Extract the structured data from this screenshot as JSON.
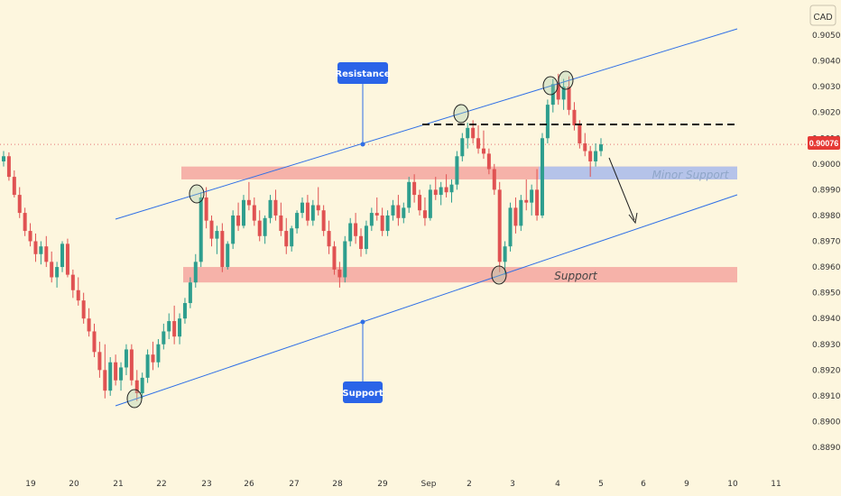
{
  "chart_data": {
    "type": "candlestick",
    "currency": "CAD",
    "last_price": "0.90076",
    "y_ticks": [
      "0.90500",
      "0.90400",
      "0.90300",
      "0.90200",
      "0.90100",
      "0.90000",
      "0.89900",
      "0.89800",
      "0.89700",
      "0.89600",
      "0.89500",
      "0.89400",
      "0.89300",
      "0.89200",
      "0.89100",
      "0.89000",
      "0.88900"
    ],
    "x_ticks": [
      "19",
      "20",
      "21",
      "22",
      "23",
      "26",
      "27",
      "28",
      "29",
      "Sep",
      "2",
      "3",
      "4",
      "5",
      "6",
      "9",
      "10",
      "11"
    ],
    "annotations": {
      "resistance": "Resistance",
      "support_callout": "Support",
      "minor_support": "Minor Support",
      "support_zone": "Support"
    },
    "colors": {
      "up": "#2e9e8e",
      "down": "#e05252",
      "channel": "#2f6fe6",
      "zone": "#f4a6a0",
      "minor_zone": "#aec4f0",
      "price_tag": "#e53935",
      "callout": "#2a64e8"
    },
    "candles": [
      [
        0.9001,
        0.9005,
        0.8999,
        0.9003
      ],
      [
        0.9003,
        0.90045,
        0.89935,
        0.8995
      ],
      [
        0.8995,
        0.89975,
        0.8987,
        0.8988
      ],
      [
        0.8988,
        0.8991,
        0.8979,
        0.8981
      ],
      [
        0.8981,
        0.8983,
        0.8972,
        0.8974
      ],
      [
        0.8974,
        0.8977,
        0.8968,
        0.897
      ],
      [
        0.897,
        0.8973,
        0.8962,
        0.8965
      ],
      [
        0.8965,
        0.897,
        0.8961,
        0.8968
      ],
      [
        0.8968,
        0.8972,
        0.896,
        0.8962
      ],
      [
        0.8962,
        0.8966,
        0.8954,
        0.8956
      ],
      [
        0.8956,
        0.8962,
        0.8952,
        0.896
      ],
      [
        0.896,
        0.897,
        0.8958,
        0.8969
      ],
      [
        0.8969,
        0.8971,
        0.8956,
        0.8957
      ],
      [
        0.8957,
        0.8959,
        0.8948,
        0.8951
      ],
      [
        0.8951,
        0.8956,
        0.8945,
        0.8947
      ],
      [
        0.8947,
        0.895,
        0.8938,
        0.894
      ],
      [
        0.894,
        0.8944,
        0.8933,
        0.8935
      ],
      [
        0.8935,
        0.8938,
        0.8925,
        0.8927
      ],
      [
        0.8927,
        0.8931,
        0.8917,
        0.892
      ],
      [
        0.892,
        0.893,
        0.8909,
        0.8912
      ],
      [
        0.8912,
        0.8925,
        0.891,
        0.8923
      ],
      [
        0.8923,
        0.8926,
        0.8914,
        0.8916
      ],
      [
        0.8916,
        0.8923,
        0.8912,
        0.8921
      ],
      [
        0.8921,
        0.893,
        0.8918,
        0.8928
      ],
      [
        0.8928,
        0.893,
        0.8914,
        0.8916
      ],
      [
        0.8916,
        0.892,
        0.8908,
        0.8911
      ],
      [
        0.8911,
        0.8919,
        0.8909,
        0.8917
      ],
      [
        0.8917,
        0.8928,
        0.8915,
        0.8926
      ],
      [
        0.8926,
        0.8931,
        0.892,
        0.8923
      ],
      [
        0.8923,
        0.8932,
        0.8921,
        0.893
      ],
      [
        0.893,
        0.8938,
        0.8928,
        0.8935
      ],
      [
        0.8935,
        0.8942,
        0.8932,
        0.8939
      ],
      [
        0.8939,
        0.8945,
        0.893,
        0.8933
      ],
      [
        0.8933,
        0.8942,
        0.893,
        0.894
      ],
      [
        0.894,
        0.8948,
        0.8938,
        0.8946
      ],
      [
        0.8946,
        0.8956,
        0.8944,
        0.8954
      ],
      [
        0.8954,
        0.8965,
        0.8952,
        0.8962
      ],
      [
        0.8962,
        0.8989,
        0.896,
        0.8987
      ],
      [
        0.8987,
        0.8991,
        0.8975,
        0.8978
      ],
      [
        0.8978,
        0.898,
        0.8968,
        0.8971
      ],
      [
        0.8971,
        0.8976,
        0.8965,
        0.8974
      ],
      [
        0.8974,
        0.8977,
        0.8958,
        0.896
      ],
      [
        0.896,
        0.897,
        0.8959,
        0.8969
      ],
      [
        0.8969,
        0.8982,
        0.8967,
        0.898
      ],
      [
        0.898,
        0.8985,
        0.8974,
        0.8976
      ],
      [
        0.8976,
        0.8988,
        0.8975,
        0.8986
      ],
      [
        0.8986,
        0.8993,
        0.8982,
        0.8984
      ],
      [
        0.8984,
        0.8987,
        0.8976,
        0.8978
      ],
      [
        0.8978,
        0.8982,
        0.897,
        0.8972
      ],
      [
        0.8972,
        0.898,
        0.8969,
        0.8979
      ],
      [
        0.8979,
        0.8988,
        0.8977,
        0.8986
      ],
      [
        0.8986,
        0.899,
        0.8978,
        0.898
      ],
      [
        0.898,
        0.8985,
        0.8972,
        0.8974
      ],
      [
        0.8974,
        0.8979,
        0.8965,
        0.8968
      ],
      [
        0.8968,
        0.8976,
        0.8966,
        0.8975
      ],
      [
        0.8975,
        0.8982,
        0.8973,
        0.8981
      ],
      [
        0.8981,
        0.8987,
        0.8979,
        0.8985
      ],
      [
        0.8985,
        0.8988,
        0.8976,
        0.8978
      ],
      [
        0.8978,
        0.8986,
        0.8976,
        0.8984
      ],
      [
        0.8984,
        0.8991,
        0.898,
        0.8982
      ],
      [
        0.8982,
        0.8984,
        0.8972,
        0.8974
      ],
      [
        0.8974,
        0.8978,
        0.8965,
        0.8968
      ],
      [
        0.8968,
        0.897,
        0.8957,
        0.8959
      ],
      [
        0.8959,
        0.8962,
        0.8952,
        0.8956
      ],
      [
        0.8956,
        0.8972,
        0.8954,
        0.897
      ],
      [
        0.897,
        0.8979,
        0.8968,
        0.8977
      ],
      [
        0.8977,
        0.8981,
        0.8969,
        0.8972
      ],
      [
        0.8972,
        0.8975,
        0.8964,
        0.8967
      ],
      [
        0.8967,
        0.8978,
        0.8965,
        0.8976
      ],
      [
        0.8976,
        0.8983,
        0.8974,
        0.8981
      ],
      [
        0.8981,
        0.8987,
        0.8978,
        0.898
      ],
      [
        0.898,
        0.8983,
        0.8972,
        0.8974
      ],
      [
        0.8974,
        0.8982,
        0.8972,
        0.898
      ],
      [
        0.898,
        0.8986,
        0.8978,
        0.8984
      ],
      [
        0.8984,
        0.8988,
        0.8976,
        0.8979
      ],
      [
        0.8979,
        0.8985,
        0.8977,
        0.8983
      ],
      [
        0.8983,
        0.8995,
        0.8981,
        0.8993
      ],
      [
        0.8993,
        0.8996,
        0.8985,
        0.8988
      ],
      [
        0.8988,
        0.899,
        0.898,
        0.8982
      ],
      [
        0.8982,
        0.8987,
        0.8976,
        0.8979
      ],
      [
        0.8979,
        0.8992,
        0.8978,
        0.899
      ],
      [
        0.899,
        0.8995,
        0.8986,
        0.8988
      ],
      [
        0.8988,
        0.8993,
        0.8984,
        0.8991
      ],
      [
        0.8991,
        0.8996,
        0.8987,
        0.8989
      ],
      [
        0.8989,
        0.8994,
        0.8985,
        0.8992
      ],
      [
        0.8992,
        0.9005,
        0.899,
        0.9003
      ],
      [
        0.9003,
        0.9012,
        0.9001,
        0.901
      ],
      [
        0.901,
        0.9016,
        0.9006,
        0.9014
      ],
      [
        0.9014,
        0.9017,
        0.9008,
        0.901
      ],
      [
        0.901,
        0.9015,
        0.9004,
        0.9006
      ],
      [
        0.9006,
        0.9013,
        0.9002,
        0.9004
      ],
      [
        0.9004,
        0.9006,
        0.8996,
        0.8998
      ],
      [
        0.8998,
        0.9,
        0.8988,
        0.899
      ],
      [
        0.899,
        0.8993,
        0.8958,
        0.8962
      ],
      [
        0.8962,
        0.897,
        0.8957,
        0.8968
      ],
      [
        0.8968,
        0.8985,
        0.8966,
        0.8983
      ],
      [
        0.8983,
        0.8987,
        0.8973,
        0.8976
      ],
      [
        0.8976,
        0.8988,
        0.8974,
        0.8986
      ],
      [
        0.8986,
        0.8994,
        0.8982,
        0.8985
      ],
      [
        0.8985,
        0.8992,
        0.898,
        0.899
      ],
      [
        0.899,
        0.8998,
        0.8978,
        0.898
      ],
      [
        0.898,
        0.9012,
        0.8979,
        0.901
      ],
      [
        0.901,
        0.9025,
        0.9008,
        0.9023
      ],
      [
        0.9023,
        0.9033,
        0.902,
        0.9031
      ],
      [
        0.9031,
        0.9035,
        0.9023,
        0.9025
      ],
      [
        0.9025,
        0.9033,
        0.9021,
        0.903
      ],
      [
        0.903,
        0.9034,
        0.9019,
        0.9021
      ],
      [
        0.9021,
        0.9024,
        0.9013,
        0.9015
      ],
      [
        0.9015,
        0.9017,
        0.9006,
        0.9008
      ],
      [
        0.9008,
        0.9012,
        0.9003,
        0.9005
      ],
      [
        0.9005,
        0.9007,
        0.8995,
        0.9001
      ],
      [
        0.9001,
        0.9008,
        0.8999,
        0.9005
      ],
      [
        0.9005,
        0.901,
        0.9003,
        0.90076
      ]
    ]
  }
}
